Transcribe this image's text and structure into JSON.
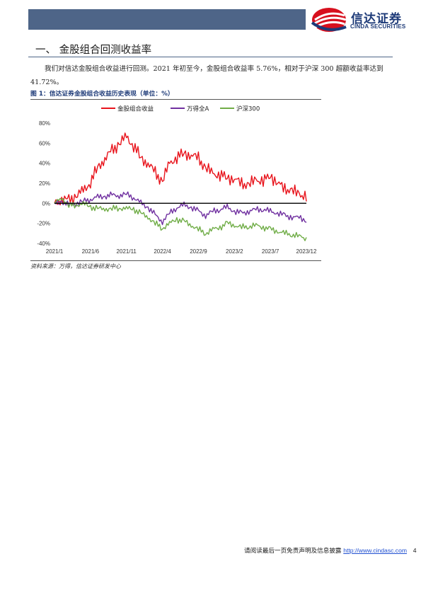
{
  "header": {
    "brand_cn": "信达证券",
    "brand_en": "CINDA SECURITIES",
    "colors": {
      "bar": "#4e6588",
      "logo_red": "#d7101e",
      "logo_blue": "#1d3a78"
    }
  },
  "section": {
    "title": "一、 金股组合回测收益率",
    "paragraph": "我们对信达金股组合收益进行回测。2021 年初至今，金股组合收益率 5.76%，相对于沪深 300 超额收益率达到 41.72%。"
  },
  "figure": {
    "title": "图 1：信达证券金股组合收益历史表现（单位：%）",
    "source": "资料来源：万得，信达证券研发中心"
  },
  "chart_data": {
    "type": "line",
    "x": [
      "2021/1",
      "2021/2",
      "2021/3",
      "2021/4",
      "2021/5",
      "2021/6",
      "2021/7",
      "2021/8",
      "2021/9",
      "2021/10",
      "2021/11",
      "2021/12",
      "2022/1",
      "2022/2",
      "2022/3",
      "2022/4",
      "2022/5",
      "2022/6",
      "2022/7",
      "2022/8",
      "2022/9",
      "2022/10",
      "2022/11",
      "2022/12",
      "2023/1",
      "2023/2",
      "2023/3",
      "2023/4",
      "2023/5",
      "2023/6",
      "2023/7",
      "2023/8",
      "2023/9",
      "2023/10",
      "2023/11",
      "2023/12"
    ],
    "x_ticks": [
      "2021/1",
      "2021/6",
      "2021/11",
      "2022/4",
      "2022/9",
      "2023/2",
      "2023/7",
      "2023/12"
    ],
    "y_ticks": [
      "-40%",
      "-20%",
      "0%",
      "20%",
      "40%",
      "60%",
      "80%"
    ],
    "ylim": [
      -40,
      80
    ],
    "zero_line": true,
    "legend_position": "top",
    "series": [
      {
        "name": "金股组合收益",
        "color": "#e8141c",
        "values": [
          0,
          5,
          2,
          8,
          12,
          22,
          35,
          45,
          52,
          60,
          66,
          58,
          45,
          40,
          30,
          22,
          40,
          46,
          50,
          48,
          45,
          35,
          30,
          28,
          26,
          24,
          20,
          18,
          24,
          22,
          28,
          20,
          15,
          12,
          10,
          6
        ]
      },
      {
        "name": "万得全A",
        "color": "#7030a0",
        "values": [
          0,
          2,
          -2,
          0,
          2,
          4,
          6,
          7,
          8,
          8,
          9,
          6,
          0,
          -4,
          -12,
          -18,
          -10,
          -4,
          -2,
          -4,
          -8,
          -12,
          -8,
          -6,
          -4,
          -8,
          -10,
          -8,
          -6,
          -6,
          -8,
          -10,
          -12,
          -14,
          -14,
          -17
        ]
      },
      {
        "name": "沪深300",
        "color": "#70ad47",
        "values": [
          0,
          5,
          -2,
          -2,
          0,
          -4,
          -5,
          -6,
          -5,
          -5,
          -5,
          -6,
          -10,
          -14,
          -20,
          -25,
          -20,
          -16,
          -18,
          -22,
          -26,
          -30,
          -26,
          -24,
          -20,
          -22,
          -24,
          -23,
          -22,
          -24,
          -26,
          -28,
          -30,
          -31,
          -33,
          -35
        ]
      }
    ]
  },
  "footer": {
    "notice": "请阅读最后一页免责声明及信息披露",
    "url": "http://www.cindasc.com",
    "page": "4"
  }
}
